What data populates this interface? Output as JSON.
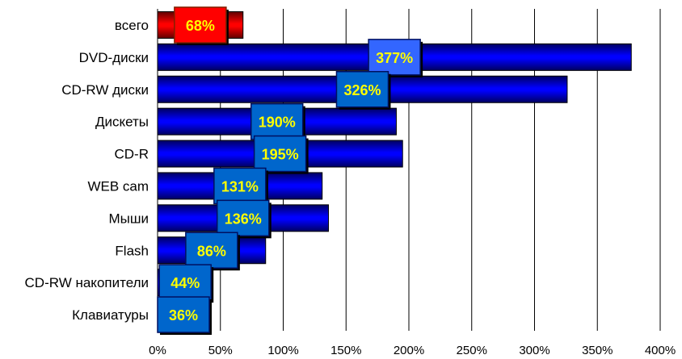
{
  "chart_data": {
    "type": "bar",
    "orientation": "horizontal",
    "categories": [
      "всего",
      "DVD-диски",
      "CD-RW диски",
      "Дискеты",
      "CD-R",
      "WEB cam",
      "Мыши",
      "Flash",
      "CD-RW накопители",
      "Клавиатуры"
    ],
    "values": [
      68,
      377,
      326,
      190,
      195,
      131,
      136,
      86,
      44,
      36
    ],
    "data_labels": [
      "68%",
      "377%",
      "326%",
      "190%",
      "195%",
      "131%",
      "136%",
      "86%",
      "44%",
      "36%"
    ],
    "xlim": [
      0,
      400
    ],
    "xticks": [
      0,
      50,
      100,
      150,
      200,
      250,
      300,
      350,
      400
    ],
    "xtick_labels": [
      "0%",
      "50%",
      "100%",
      "150%",
      "200%",
      "250%",
      "300%",
      "350%",
      "400%"
    ],
    "grid": "vertical",
    "title": "",
    "xlabel": "",
    "ylabel": "",
    "colors": {
      "highlight_bar": "#ff0000",
      "bar": "#0000ff",
      "label_box": "#0066cc",
      "label_box_top": "#3366ff",
      "label_box_highlight": "#ff0000",
      "label_text": "#ffff00"
    }
  }
}
